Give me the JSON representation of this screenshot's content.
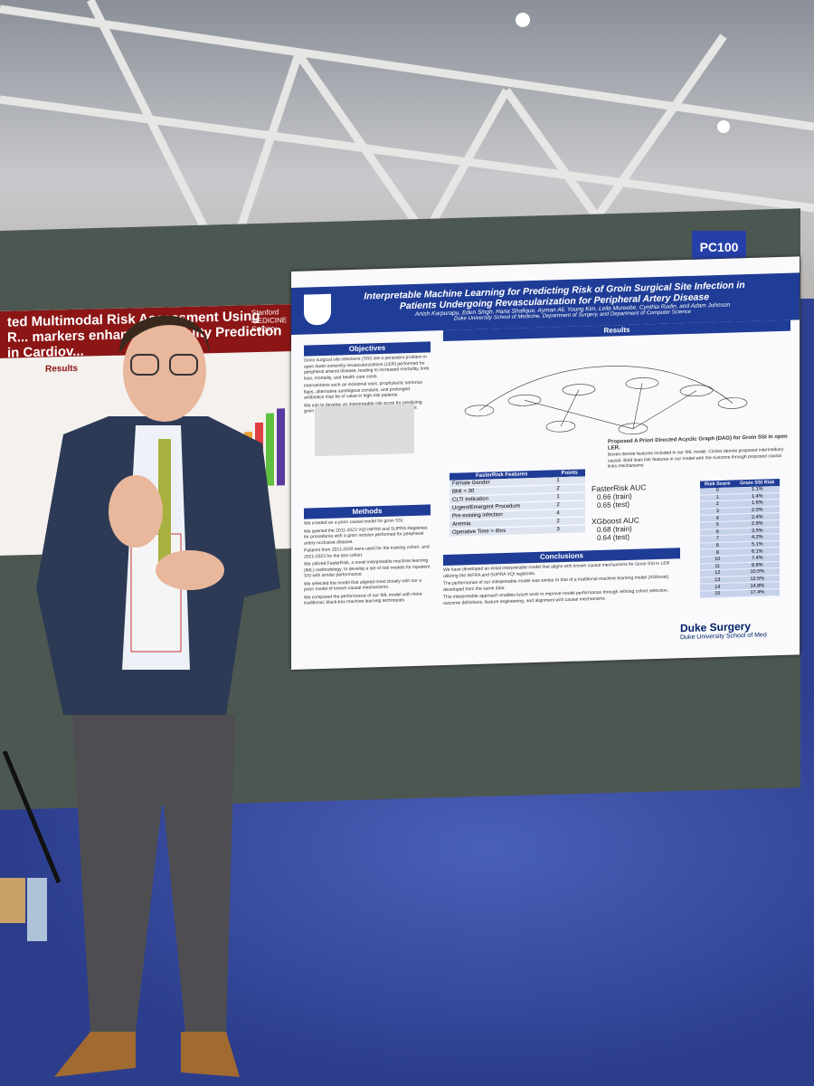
{
  "board_id": "PC100",
  "left_poster": {
    "title": "ted Multimodal Risk Assessment Using R... markers enhances Mortality Prediction in Cardiov...",
    "logo": "Stanford MEDICINE Surgery",
    "section": "Results"
  },
  "poster": {
    "title": "Interpretable Machine Learning for Predicting Risk of Groin Surgical Site Infection in Patients Undergoing Revascularization for Peripheral Artery Disease",
    "authors": "Anish Karpurapu, Eden Singh, Hana Shafique, Ayman Ali, Young Kim, Leila Mureebe, Cynthia Rudin, and Adam Johnson",
    "affiliation": "Duke University School of Medicine, Department of Surgery, and Department of Computer Science",
    "objectives": {
      "heading": "Objectives",
      "items": [
        "Groin surgical site infections (SSI) are a persistent problem in open lower extremity revascularizations (LER) performed for peripheral arterial disease, leading to increased morbidity, limb loss, mortality, and health care costs.",
        "Interventions such as incisional vacs, prophylactic sartorius flaps, alternative autologous conduits, and prolonged antibiotics may be of value in high-risk patients.",
        "We aim to develop an interpretable risk score for predicting groin SSI with an accompanying proposed causal model."
      ]
    },
    "methods": {
      "heading": "Methods",
      "items": [
        "We created an a priori causal model for groin SSI.",
        "We queried the 2011-2023 VQI INFRA and SUPRA Registries for procedures with a groin incision performed for peripheral artery occlusive disease.",
        "Patients from 2011-2020 were used for the training cohort, and 2021-2023 for the test cohort.",
        "We utilized FasterRisk, a novel interpretable machine learning (IML) methodology, to develop a set of risk models for inpatient SSI with similar performance.",
        "We selected the model that aligned most closely with our a priori model of known causal mechanisms.",
        "We compared the performance of our IML model with more traditional, black-box machine learning techniques."
      ]
    },
    "results": {
      "heading": "Results",
      "dag_caption": "Proposed A Priori Directed Acyclic Graph (DAG) for Groin SSI in open LER.",
      "dag_note": "Boxes denote features included in our IML model. Circles denote proposed intermediary causal. Bold lines link features in our model with the outcome through proposed causal links mechanisms"
    },
    "features_table": {
      "header": [
        "FasterRisk Features",
        "Points"
      ],
      "rows": [
        [
          "Female Gender",
          "1"
        ],
        [
          "BMI > 30",
          "2"
        ],
        [
          "CLTI Indication",
          "1"
        ],
        [
          "Urgent/Emergent Procedure",
          "2"
        ],
        [
          "Pre-existing infection",
          "4"
        ],
        [
          "Anemia",
          "2"
        ],
        [
          "Operative Time > 4hrs",
          "3"
        ]
      ]
    },
    "auc": [
      "FasterRisk AUC",
      "0.66 (train)",
      "0.65 (test)",
      "XGboost AUC",
      "0.68 (train)",
      "0.64 (test)"
    ],
    "risk_table": {
      "header": [
        "Risk Score",
        "Groin SSI Risk"
      ],
      "rows": [
        [
          "0",
          "1.1%"
        ],
        [
          "1",
          "1.4%"
        ],
        [
          "2",
          "1.6%"
        ],
        [
          "3",
          "2.0%"
        ],
        [
          "4",
          "2.4%"
        ],
        [
          "5",
          "2.9%"
        ],
        [
          "6",
          "3.5%"
        ],
        [
          "7",
          "4.2%"
        ],
        [
          "8",
          "5.1%"
        ],
        [
          "9",
          "6.1%"
        ],
        [
          "10",
          "7.4%"
        ],
        [
          "11",
          "8.8%"
        ],
        [
          "12",
          "10.5%"
        ],
        [
          "13",
          "12.5%"
        ],
        [
          "14",
          "14.8%"
        ],
        [
          "15",
          "17.4%"
        ]
      ]
    },
    "conclusions": {
      "heading": "Conclusions",
      "items": [
        "We have developed an initial interpretable model that aligns with known causal mechanisms for Groin SSI in LER utilizing the INFRA and SUPRA VQI registries.",
        "The performance of our interpretable model was similar to that of a traditional machine learning model (XGboost) developed from the same data",
        "This interpretable approach enables future work to improve model performance through refining cohort selection, outcome definitions, feature engineering, and alignment with causal mechanisms."
      ]
    },
    "logo": "Duke Surgery",
    "school": "Duke University School of Med"
  }
}
